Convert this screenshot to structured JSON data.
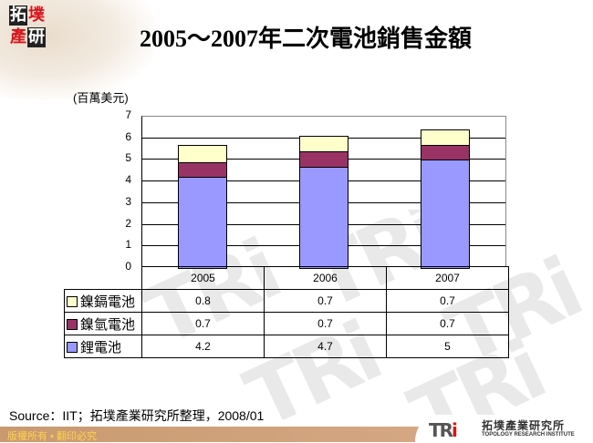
{
  "header": {
    "logo_chars": [
      "拓",
      "墣",
      "產",
      "研"
    ],
    "title": "2005～2007年二次電池銷售金額"
  },
  "chart_data": {
    "type": "bar",
    "stacked": true,
    "title": "2005～2007年二次電池銷售金額",
    "xlabel": "",
    "ylabel": "(百萬美元)",
    "ylim": [
      0,
      7
    ],
    "yticks": [
      0,
      1,
      2,
      3,
      4,
      5,
      6,
      7
    ],
    "grid": true,
    "legend_position": "data-table",
    "categories": [
      "2005",
      "2006",
      "2007"
    ],
    "series": [
      {
        "name": "鋰電池",
        "color": "#9999ff",
        "values": [
          4.2,
          4.7,
          5
        ]
      },
      {
        "name": "鎳氫電池",
        "color": "#993366",
        "values": [
          0.7,
          0.7,
          0.7
        ]
      },
      {
        "name": "鎳鎘電池",
        "color": "#ffffcc",
        "values": [
          0.8,
          0.7,
          0.7
        ]
      }
    ]
  },
  "chart": {
    "unit_label": "(百萬美元)",
    "yticks": [
      "0",
      "1",
      "2",
      "3",
      "4",
      "5",
      "6",
      "7"
    ],
    "categories": [
      "2005",
      "2006",
      "2007"
    ],
    "table_rows": [
      {
        "label": "鎳鎘電池",
        "color": "#ffffcc",
        "values": [
          "0.8",
          "0.7",
          "0.7"
        ]
      },
      {
        "label": "鎳氫電池",
        "color": "#993366",
        "values": [
          "0.7",
          "0.7",
          "0.7"
        ]
      },
      {
        "label": "鋰電池",
        "color": "#9999ff",
        "values": [
          "4.2",
          "4.7",
          "5"
        ]
      }
    ]
  },
  "footer": {
    "source": "Source：IIT；拓墣產業研究所整理，2008/01",
    "copyright": "版權所有 • 翻印必究",
    "brand_logo": "TRi",
    "brand_cn": "拓墣產業研究所",
    "brand_en": "TOPOLOGY RESEARCH INSTITUTE"
  }
}
